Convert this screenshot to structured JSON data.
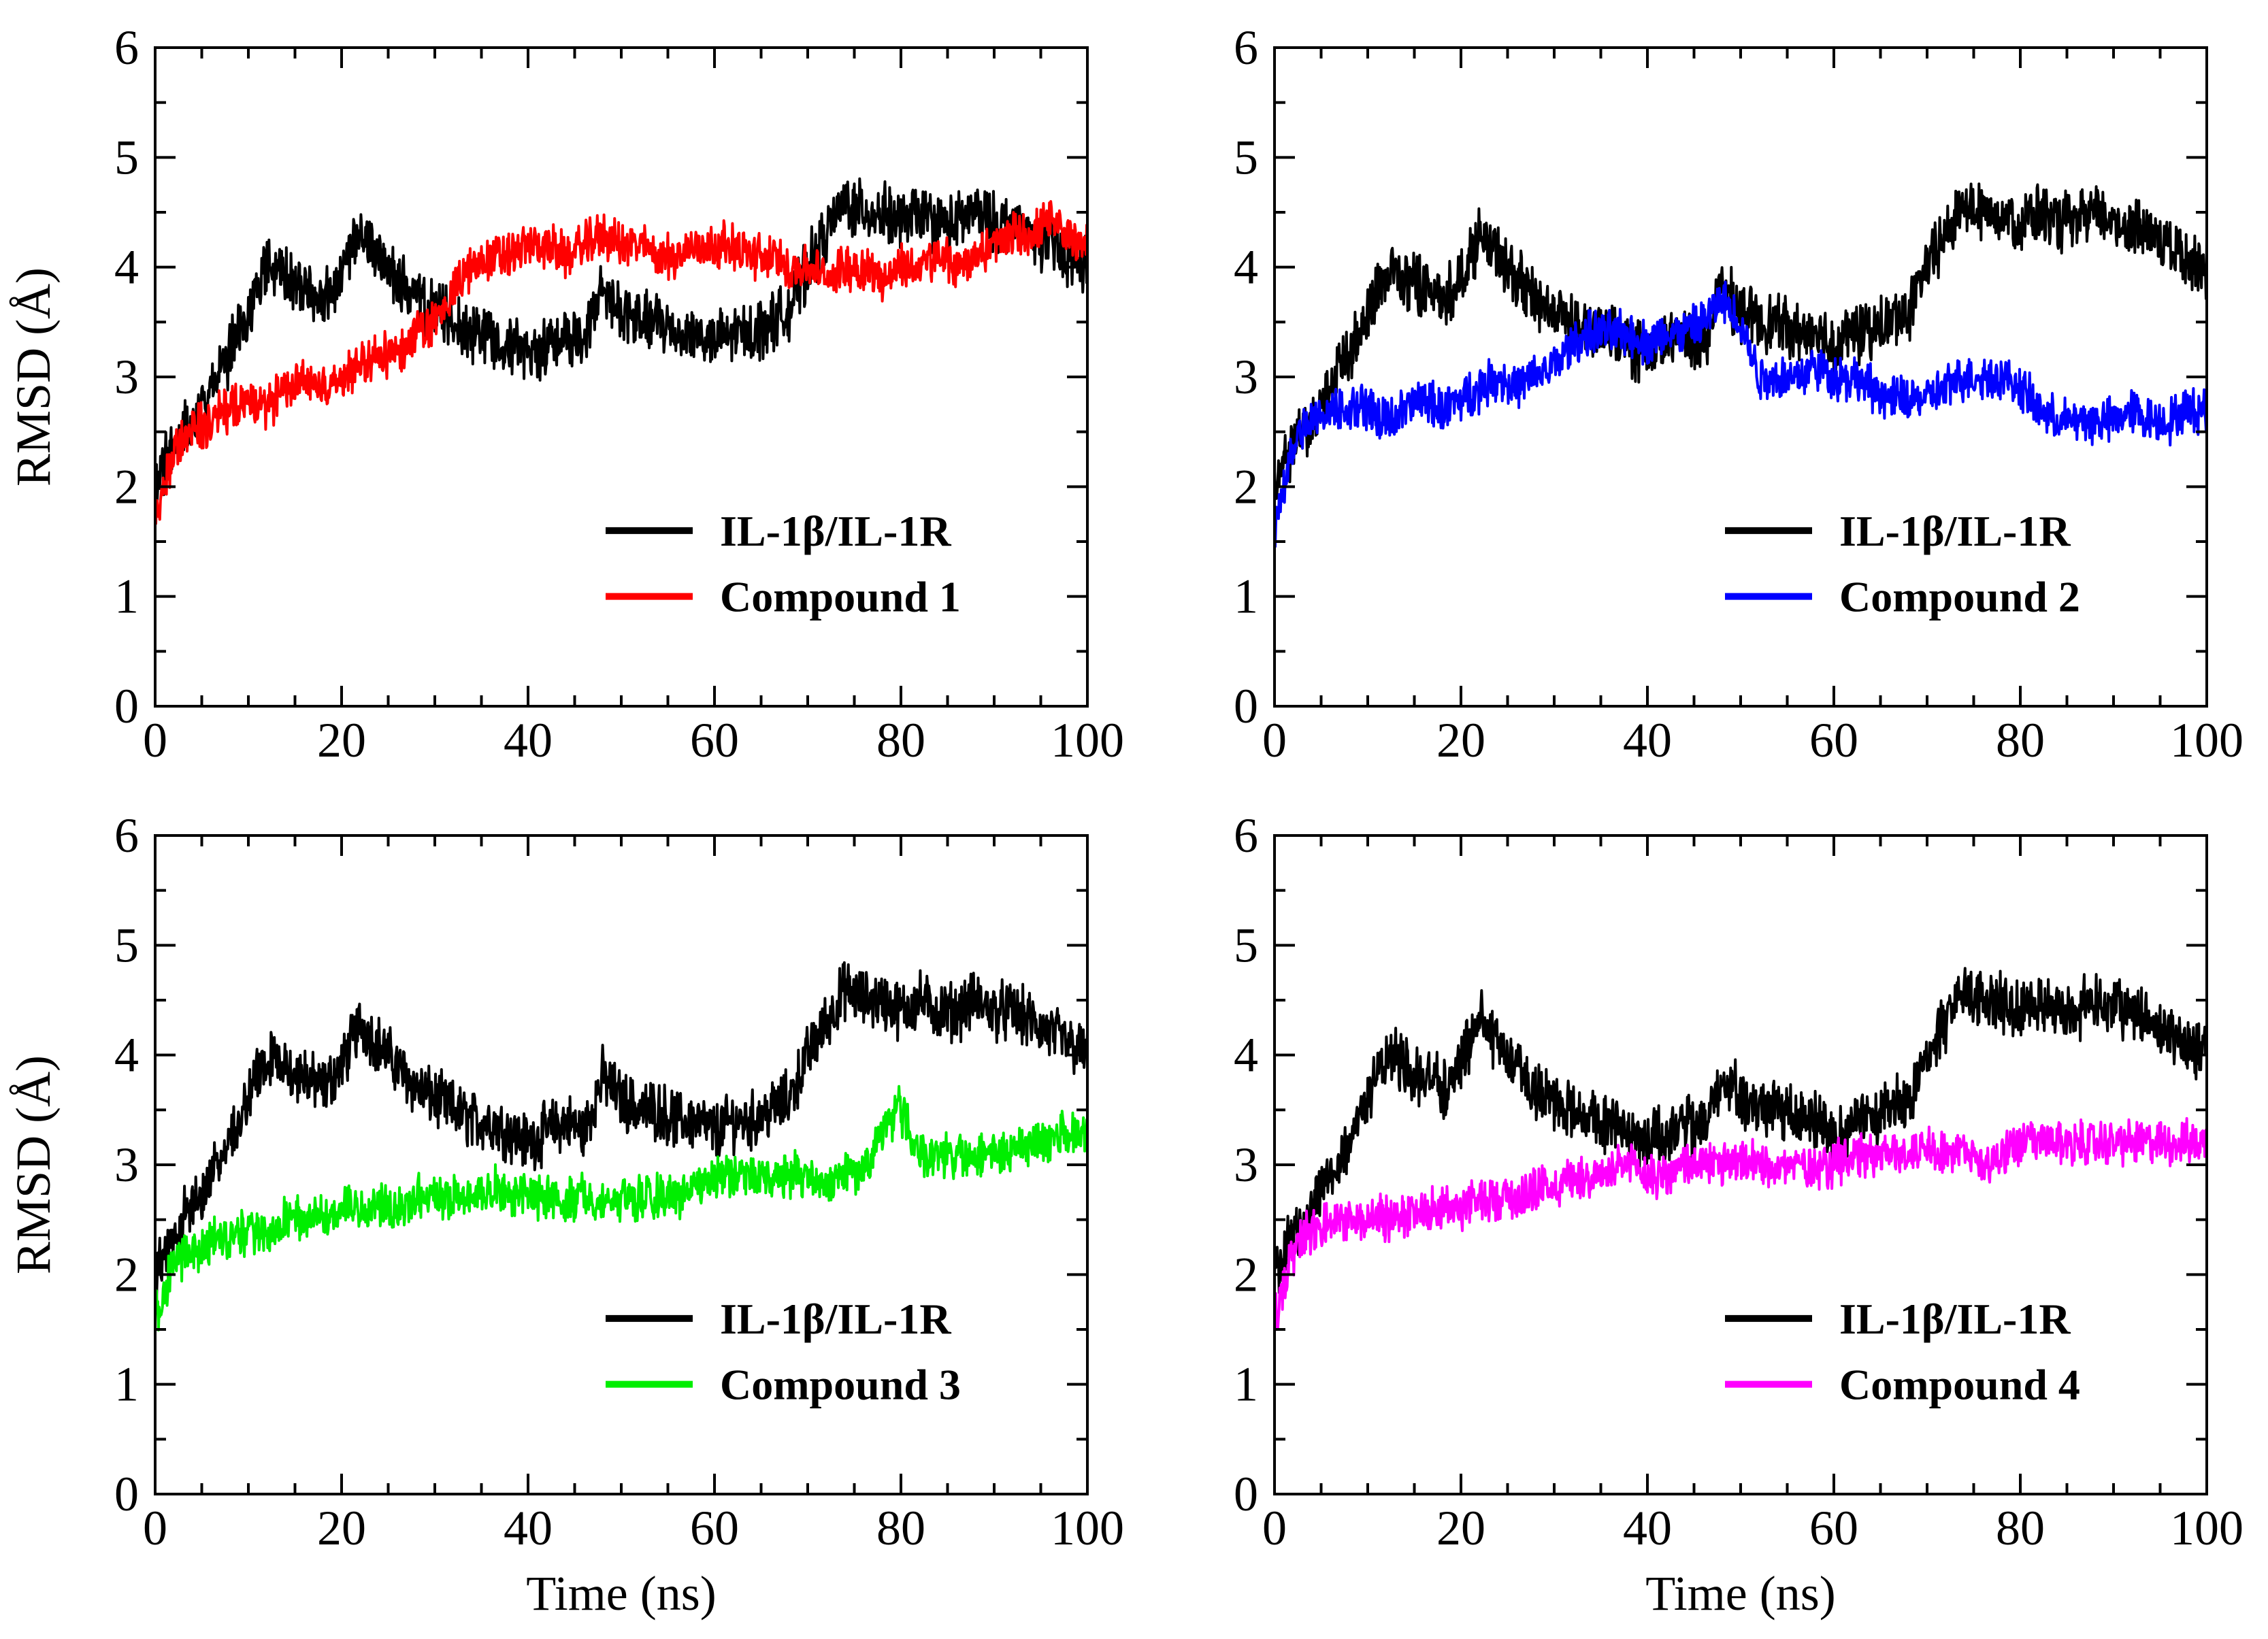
{
  "figure": {
    "description_free": true
  },
  "series_colors": {
    "reference": "#000000",
    "compound_1": "#ff0000",
    "compound_2": "#0000ff",
    "compound_3": "#00ee00",
    "compound_4": "#ff00ff"
  },
  "chart_data": [
    {
      "type": "line",
      "title": "",
      "xlabel": "",
      "ylabel": "RMSD (Å)",
      "xlim": [
        0,
        100
      ],
      "ylim": [
        0,
        6
      ],
      "xticks": [
        "0",
        "20",
        "40",
        "60",
        "80",
        "100"
      ],
      "yticks": [
        "0",
        "1",
        "2",
        "3",
        "4",
        "5",
        "6"
      ],
      "legend_position": "bottom-right",
      "series": [
        {
          "name": "IL-1β/IL-1R",
          "color": "#000000",
          "x": [
            0,
            2,
            4,
            6,
            8,
            10,
            12,
            14,
            16,
            18,
            20,
            22,
            24,
            26,
            28,
            30,
            32,
            34,
            36,
            38,
            40,
            42,
            44,
            46,
            48,
            50,
            52,
            54,
            56,
            58,
            60,
            62,
            64,
            66,
            68,
            70,
            72,
            74,
            76,
            78,
            80,
            82,
            84,
            86,
            88,
            90,
            92,
            94,
            96,
            98,
            100
          ],
          "y": [
            2.0,
            2.4,
            2.6,
            2.9,
            3.2,
            3.6,
            4.0,
            3.9,
            3.8,
            3.7,
            3.9,
            4.3,
            4.1,
            3.9,
            3.7,
            3.6,
            3.5,
            3.4,
            3.4,
            3.3,
            3.2,
            3.3,
            3.4,
            3.3,
            3.8,
            3.6,
            3.5,
            3.5,
            3.4,
            3.4,
            3.3,
            3.4,
            3.4,
            3.5,
            3.6,
            4.0,
            4.3,
            4.6,
            4.5,
            4.5,
            4.4,
            4.5,
            4.4,
            4.4,
            4.5,
            4.4,
            4.4,
            4.3,
            4.2,
            4.1,
            4.0
          ]
        },
        {
          "name": "Compound 1",
          "color": "#ff0000",
          "x": [
            0,
            2,
            4,
            6,
            8,
            10,
            12,
            14,
            16,
            18,
            20,
            22,
            24,
            26,
            28,
            30,
            32,
            34,
            36,
            38,
            40,
            42,
            44,
            46,
            48,
            50,
            52,
            54,
            56,
            58,
            60,
            62,
            64,
            66,
            68,
            70,
            72,
            74,
            76,
            78,
            80,
            82,
            84,
            86,
            88,
            90,
            92,
            94,
            96,
            98,
            100
          ],
          "y": [
            1.7,
            2.3,
            2.5,
            2.6,
            2.7,
            2.8,
            2.7,
            2.9,
            3.0,
            2.9,
            3.0,
            3.1,
            3.2,
            3.2,
            3.4,
            3.5,
            3.8,
            4.0,
            4.1,
            4.1,
            4.2,
            4.2,
            4.1,
            4.2,
            4.3,
            4.2,
            4.2,
            4.1,
            4.1,
            4.2,
            4.2,
            4.2,
            4.1,
            4.1,
            4.0,
            4.0,
            3.9,
            4.0,
            4.0,
            3.9,
            4.0,
            4.0,
            4.1,
            4.0,
            4.1,
            4.2,
            4.3,
            4.3,
            4.4,
            4.3,
            4.2
          ]
        }
      ]
    },
    {
      "type": "line",
      "title": "",
      "xlabel": "",
      "ylabel": "",
      "xlim": [
        0,
        100
      ],
      "ylim": [
        0,
        6
      ],
      "xticks": [
        "0",
        "20",
        "40",
        "60",
        "80",
        "100"
      ],
      "yticks": [
        "0",
        "1",
        "2",
        "3",
        "4",
        "5",
        "6"
      ],
      "legend_position": "bottom-right",
      "series": [
        {
          "name": "IL-1β/IL-1R",
          "color": "#000000",
          "x": [
            0,
            2,
            4,
            6,
            8,
            10,
            12,
            14,
            16,
            18,
            20,
            22,
            24,
            26,
            28,
            30,
            32,
            34,
            36,
            38,
            40,
            42,
            44,
            46,
            48,
            50,
            52,
            54,
            56,
            58,
            60,
            62,
            64,
            66,
            68,
            70,
            72,
            74,
            76,
            78,
            80,
            82,
            84,
            86,
            88,
            90,
            92,
            94,
            96,
            98,
            100
          ],
          "y": [
            2.0,
            2.4,
            2.6,
            2.9,
            3.2,
            3.6,
            4.0,
            3.9,
            3.8,
            3.7,
            3.9,
            4.3,
            4.1,
            3.9,
            3.7,
            3.6,
            3.5,
            3.4,
            3.4,
            3.3,
            3.2,
            3.3,
            3.4,
            3.3,
            3.8,
            3.6,
            3.5,
            3.5,
            3.4,
            3.4,
            3.3,
            3.4,
            3.4,
            3.5,
            3.6,
            4.0,
            4.3,
            4.6,
            4.5,
            4.5,
            4.4,
            4.5,
            4.4,
            4.4,
            4.5,
            4.4,
            4.4,
            4.3,
            4.2,
            4.1,
            4.0
          ]
        },
        {
          "name": "Compound 2",
          "color": "#0000ff",
          "x": [
            0,
            2,
            4,
            6,
            8,
            10,
            12,
            14,
            16,
            18,
            20,
            22,
            24,
            26,
            28,
            30,
            32,
            34,
            36,
            38,
            40,
            42,
            44,
            46,
            48,
            50,
            52,
            54,
            56,
            58,
            60,
            62,
            64,
            66,
            68,
            70,
            72,
            74,
            76,
            78,
            80,
            82,
            84,
            86,
            88,
            90,
            92,
            94,
            96,
            98,
            100
          ],
          "y": [
            1.6,
            2.4,
            2.6,
            2.7,
            2.7,
            2.7,
            2.6,
            2.7,
            2.8,
            2.7,
            2.8,
            2.9,
            3.0,
            2.9,
            3.0,
            3.1,
            3.3,
            3.4,
            3.4,
            3.4,
            3.3,
            3.4,
            3.4,
            3.5,
            3.7,
            3.5,
            3.0,
            3.0,
            3.0,
            3.1,
            3.0,
            3.0,
            2.9,
            2.8,
            2.8,
            2.8,
            2.9,
            3.0,
            3.0,
            3.0,
            2.9,
            2.7,
            2.6,
            2.6,
            2.6,
            2.6,
            2.7,
            2.6,
            2.6,
            2.7,
            2.7
          ]
        }
      ]
    },
    {
      "type": "line",
      "title": "",
      "xlabel": "Time (ns)",
      "ylabel": "RMSD (Å)",
      "xlim": [
        0,
        100
      ],
      "ylim": [
        0,
        6
      ],
      "xticks": [
        "0",
        "20",
        "40",
        "60",
        "80",
        "100"
      ],
      "yticks": [
        "0",
        "1",
        "2",
        "3",
        "4",
        "5",
        "6"
      ],
      "legend_position": "bottom-right",
      "series": [
        {
          "name": "IL-1β/IL-1R",
          "color": "#000000",
          "x": [
            0,
            2,
            4,
            6,
            8,
            10,
            12,
            14,
            16,
            18,
            20,
            22,
            24,
            26,
            28,
            30,
            32,
            34,
            36,
            38,
            40,
            42,
            44,
            46,
            48,
            50,
            52,
            54,
            56,
            58,
            60,
            62,
            64,
            66,
            68,
            70,
            72,
            74,
            76,
            78,
            80,
            82,
            84,
            86,
            88,
            90,
            92,
            94,
            96,
            98,
            100
          ],
          "y": [
            2.0,
            2.4,
            2.6,
            2.9,
            3.2,
            3.6,
            4.0,
            3.9,
            3.8,
            3.7,
            3.9,
            4.3,
            4.1,
            3.9,
            3.7,
            3.6,
            3.5,
            3.4,
            3.4,
            3.3,
            3.2,
            3.3,
            3.4,
            3.3,
            3.8,
            3.6,
            3.5,
            3.5,
            3.4,
            3.4,
            3.3,
            3.4,
            3.4,
            3.5,
            3.6,
            4.0,
            4.3,
            4.6,
            4.5,
            4.5,
            4.4,
            4.5,
            4.4,
            4.4,
            4.5,
            4.4,
            4.4,
            4.3,
            4.2,
            4.1,
            4.0
          ]
        },
        {
          "name": "Compound 3",
          "color": "#00ee00",
          "x": [
            0,
            2,
            4,
            6,
            8,
            10,
            12,
            14,
            16,
            18,
            20,
            22,
            24,
            26,
            28,
            30,
            32,
            34,
            36,
            38,
            40,
            42,
            44,
            46,
            48,
            50,
            52,
            54,
            56,
            58,
            60,
            62,
            64,
            66,
            68,
            70,
            72,
            74,
            76,
            78,
            80,
            82,
            84,
            86,
            88,
            90,
            92,
            94,
            96,
            98,
            100
          ],
          "y": [
            1.6,
            2.1,
            2.2,
            2.3,
            2.3,
            2.4,
            2.4,
            2.5,
            2.5,
            2.5,
            2.6,
            2.6,
            2.6,
            2.6,
            2.7,
            2.7,
            2.7,
            2.7,
            2.8,
            2.7,
            2.7,
            2.7,
            2.7,
            2.7,
            2.7,
            2.7,
            2.7,
            2.7,
            2.7,
            2.8,
            2.9,
            2.9,
            2.9,
            2.9,
            2.9,
            2.9,
            2.8,
            2.9,
            2.9,
            3.3,
            3.5,
            3.1,
            3.1,
            3.1,
            3.1,
            3.1,
            3.1,
            3.2,
            3.2,
            3.3,
            3.3
          ]
        }
      ]
    },
    {
      "type": "line",
      "title": "",
      "xlabel": "Time (ns)",
      "ylabel": "",
      "xlim": [
        0,
        100
      ],
      "ylim": [
        0,
        6
      ],
      "xticks": [
        "0",
        "20",
        "40",
        "60",
        "80",
        "100"
      ],
      "yticks": [
        "0",
        "1",
        "2",
        "3",
        "4",
        "5",
        "6"
      ],
      "legend_position": "bottom-right",
      "series": [
        {
          "name": "IL-1β/IL-1R",
          "color": "#000000",
          "x": [
            0,
            2,
            4,
            6,
            8,
            10,
            12,
            14,
            16,
            18,
            20,
            22,
            24,
            26,
            28,
            30,
            32,
            34,
            36,
            38,
            40,
            42,
            44,
            46,
            48,
            50,
            52,
            54,
            56,
            58,
            60,
            62,
            64,
            66,
            68,
            70,
            72,
            74,
            76,
            78,
            80,
            82,
            84,
            86,
            88,
            90,
            92,
            94,
            96,
            98,
            100
          ],
          "y": [
            2.0,
            2.4,
            2.6,
            2.9,
            3.2,
            3.6,
            4.0,
            3.9,
            3.8,
            3.7,
            3.9,
            4.3,
            4.1,
            3.9,
            3.7,
            3.6,
            3.5,
            3.4,
            3.4,
            3.3,
            3.2,
            3.3,
            3.4,
            3.3,
            3.8,
            3.6,
            3.5,
            3.5,
            3.4,
            3.4,
            3.3,
            3.4,
            3.4,
            3.5,
            3.6,
            4.0,
            4.3,
            4.6,
            4.5,
            4.5,
            4.4,
            4.5,
            4.4,
            4.4,
            4.5,
            4.4,
            4.4,
            4.3,
            4.2,
            4.1,
            4.0
          ]
        },
        {
          "name": "Compound 4",
          "color": "#ff00ff",
          "x": [
            0,
            2,
            4,
            6,
            8,
            10,
            12,
            14,
            16,
            18,
            20,
            22,
            24,
            26,
            28,
            30,
            32,
            34,
            36,
            38,
            40,
            42,
            44,
            46,
            48,
            50,
            52,
            54,
            56,
            58,
            60,
            62,
            64,
            66,
            68,
            70,
            72,
            74,
            76,
            78,
            80,
            82,
            84,
            86,
            88,
            90,
            92,
            94,
            96,
            98,
            100
          ],
          "y": [
            1.6,
            2.2,
            2.4,
            2.5,
            2.5,
            2.5,
            2.5,
            2.5,
            2.6,
            2.6,
            2.6,
            2.7,
            2.7,
            2.7,
            2.8,
            2.8,
            2.9,
            2.9,
            2.9,
            3.0,
            2.9,
            2.9,
            3.0,
            3.0,
            3.0,
            3.0,
            3.0,
            3.0,
            3.0,
            3.0,
            3.0,
            3.1,
            3.1,
            3.1,
            3.1,
            3.2,
            3.1,
            3.1,
            3.0,
            3.1,
            3.2,
            3.2,
            3.2,
            3.2,
            3.2,
            3.2,
            3.2,
            3.2,
            3.2,
            3.2,
            3.2
          ]
        }
      ]
    }
  ]
}
